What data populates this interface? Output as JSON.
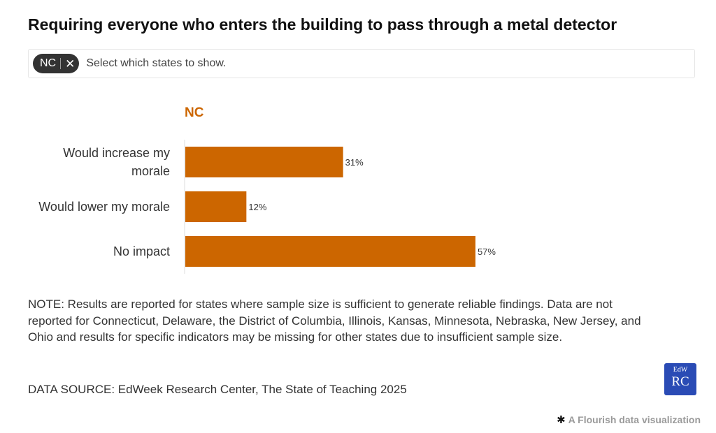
{
  "title": "Requiring everyone who enters the building to pass through a metal detector",
  "filter": {
    "chip_label": "NC",
    "chip_close_icon": "close-icon",
    "placeholder": "Select which states to show."
  },
  "chart_data": {
    "type": "bar",
    "orientation": "horizontal",
    "panel_title": "NC",
    "categories": [
      [
        "Would increase my",
        "morale"
      ],
      [
        "Would lower my morale"
      ],
      [
        "No impact"
      ]
    ],
    "values": [
      31,
      12,
      57
    ],
    "value_labels": [
      "31%",
      "12%",
      "57%"
    ],
    "xlim": [
      0,
      70
    ],
    "bar_color": "#cc6600",
    "grid": false,
    "legend": "none"
  },
  "note": "NOTE: Results are reported for states where sample size is sufficient to generate reliable findings. Data are not reported for Connecticut, Delaware, the District of Columbia, Illinois, Kansas, Minnesota, Nebraska, New Jersey, and Ohio and results for specific indicators may be missing for other states due to insufficient sample size.",
  "source": "DATA SOURCE: EdWeek Research Center, The State of Teaching 2025",
  "logo": {
    "line1": "EdW",
    "line2": "RC",
    "color": "#2a4bb5"
  },
  "credit": {
    "icon": "flourish-asterisk-icon",
    "text": "A Flourish data visualization"
  }
}
